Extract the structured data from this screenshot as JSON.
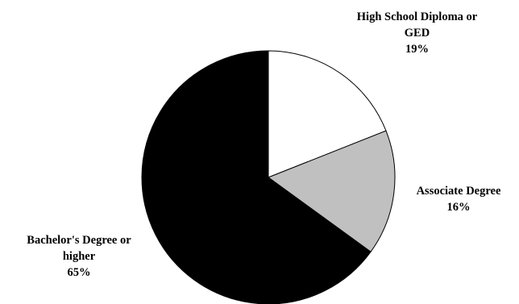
{
  "chart_data": {
    "type": "pie",
    "title": "",
    "slices": [
      {
        "label_lines": [
          "High School Diploma or",
          "GED"
        ],
        "percent_label": "19%",
        "value": 19,
        "color": "#ffffff"
      },
      {
        "label_lines": [
          "Associate Degree"
        ],
        "percent_label": "16%",
        "value": 16,
        "color": "#c0c0c0"
      },
      {
        "label_lines": [
          "Bachelor's Degree or",
          "higher"
        ],
        "percent_label": "65%",
        "value": 65,
        "color": "#000000"
      }
    ],
    "start_angle": "12 o'clock",
    "direction": "clockwise",
    "outline_color": "#000000",
    "legend": "none"
  }
}
